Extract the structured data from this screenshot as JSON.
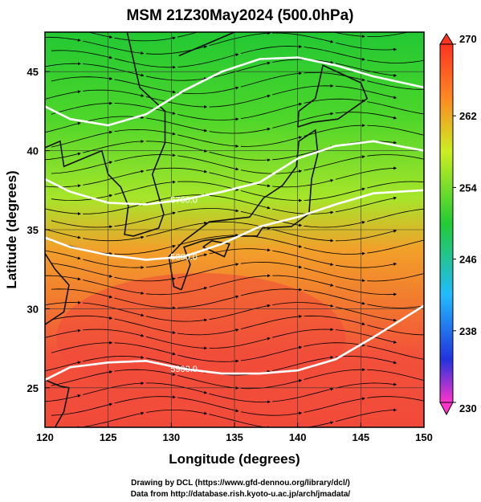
{
  "title": "MSM 21Z30May2024 (500.0hPa)",
  "x_axis": {
    "label": "Longitude (degrees)",
    "ticks": [
      "120",
      "125",
      "130",
      "135",
      "140",
      "145",
      "150"
    ]
  },
  "y_axis": {
    "label": "Latitude  (degrees)",
    "ticks": [
      "25",
      "30",
      "35",
      "40",
      "45"
    ]
  },
  "contour_labels": [
    "5700.0",
    "5800.0",
    "5900.0"
  ],
  "colorbar": {
    "ticks": [
      "270",
      "262",
      "254",
      "246",
      "238",
      "230"
    ]
  },
  "credits": {
    "line1": "Drawing by DCL (https://www.gfd-dennou.org/library/dcl/)",
    "line2": "Data from http://database.rish.kyoto-u.ac.jp/arch/jmadata/"
  },
  "chart_data": {
    "type": "heatmap",
    "variable": "temperature with geopotential height contours and wind streamlines",
    "xlim": [
      120,
      150
    ],
    "ylim": [
      22.5,
      47.5
    ],
    "colorbar_range": [
      230,
      270
    ],
    "colors": {
      "c230": "#ff33cc",
      "c238": "#2233dd",
      "c246": "#22bbff",
      "c254": "#22cc33",
      "c262": "#ccee22",
      "c270": "#ff3322"
    },
    "height_contours": [
      {
        "label": "5700.0",
        "points": [
          [
            120,
            38.2
          ],
          [
            122,
            37.4
          ],
          [
            125,
            36.7
          ],
          [
            128,
            36.6
          ],
          [
            131,
            36.9
          ],
          [
            134,
            37.4
          ],
          [
            137,
            38.0
          ],
          [
            140,
            39.5
          ],
          [
            143,
            40.3
          ],
          [
            146,
            40.6
          ],
          [
            150,
            40.0
          ]
        ]
      },
      {
        "label": "5800.0",
        "points": [
          [
            120,
            34.5
          ],
          [
            122,
            33.9
          ],
          [
            125,
            33.4
          ],
          [
            128,
            33.1
          ],
          [
            131,
            33.3
          ],
          [
            134,
            34.1
          ],
          [
            137,
            35.2
          ],
          [
            140,
            35.8
          ],
          [
            143,
            36.6
          ],
          [
            146,
            37.3
          ],
          [
            150,
            37.5
          ]
        ]
      },
      {
        "label": "5900.0",
        "points": [
          [
            120,
            25.5
          ],
          [
            122,
            26.3
          ],
          [
            125,
            26.6
          ],
          [
            128,
            26.7
          ],
          [
            131,
            26.2
          ],
          [
            134,
            25.9
          ],
          [
            137,
            25.9
          ],
          [
            140,
            26.1
          ],
          [
            143,
            26.8
          ],
          [
            146,
            28.2
          ],
          [
            150,
            30.2
          ]
        ]
      },
      {
        "label": "",
        "points": [
          [
            120,
            42.8
          ],
          [
            122,
            42.0
          ],
          [
            125,
            41.6
          ],
          [
            128,
            42.3
          ],
          [
            131,
            43.8
          ],
          [
            134,
            45.0
          ],
          [
            137,
            45.8
          ],
          [
            140,
            45.9
          ],
          [
            143,
            45.4
          ],
          [
            146,
            44.7
          ],
          [
            150,
            44.0
          ]
        ]
      }
    ],
    "grid": true
  }
}
